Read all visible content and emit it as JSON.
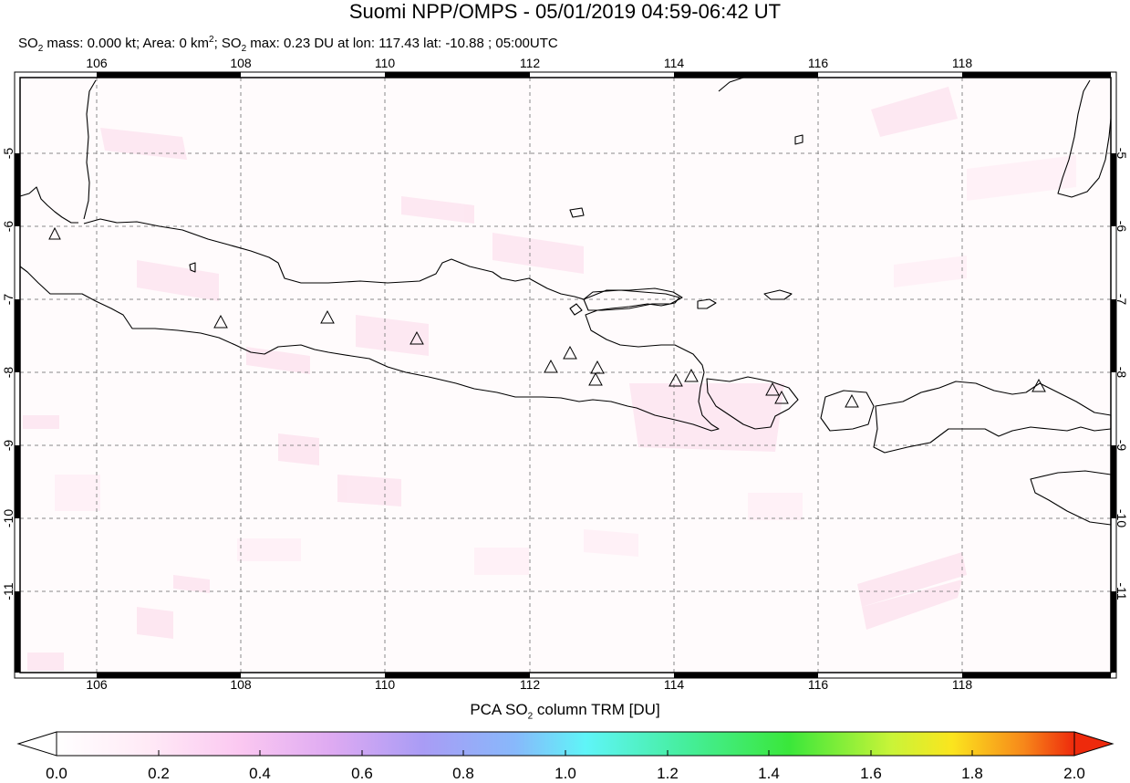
{
  "header": {
    "title": "Suomi NPP/OMPS - 05/01/2019 04:59-06:42 UT",
    "stats_line": {
      "so2_prefix": "SO",
      "so2_sub": "2",
      "mass_text": " mass: 0.000 kt; Area: 0 km",
      "area_sup": "2",
      "sep": "; SO",
      "so2_sub_2": "2",
      "max_text": " max: 0.23 DU at lon: 117.43 lat: -10.88 ; 05:00UTC"
    }
  },
  "map": {
    "lon_labels": [
      "106",
      "108",
      "110",
      "112",
      "114",
      "116",
      "118"
    ],
    "lat_labels": [
      "-5",
      "-6",
      "-7",
      "-8",
      "-9",
      "-10",
      "-11"
    ],
    "volcano_marker": "triangle-icon",
    "colors": {
      "coastline": "#000000",
      "grid": "#888888",
      "so2_low": "#fde6f2",
      "frame": "#000000"
    }
  },
  "colorbar": {
    "title_prefix": "PCA SO",
    "title_sub": "2",
    "title_suffix": " column TRM [DU]",
    "tick_labels": [
      "0.0",
      "0.2",
      "0.4",
      "0.6",
      "0.8",
      "1.0",
      "1.2",
      "1.4",
      "1.6",
      "1.8",
      "2.0"
    ],
    "range": [
      0.0,
      2.0
    ],
    "colors": [
      "#ffffff",
      "#ffd6f2",
      "#e4a8f2",
      "#a99cf5",
      "#8ab6fa",
      "#5ff5f8",
      "#43ee9b",
      "#39e83c",
      "#c5f338",
      "#fbe51e",
      "#f79a18",
      "#ee2a0c"
    ]
  }
}
